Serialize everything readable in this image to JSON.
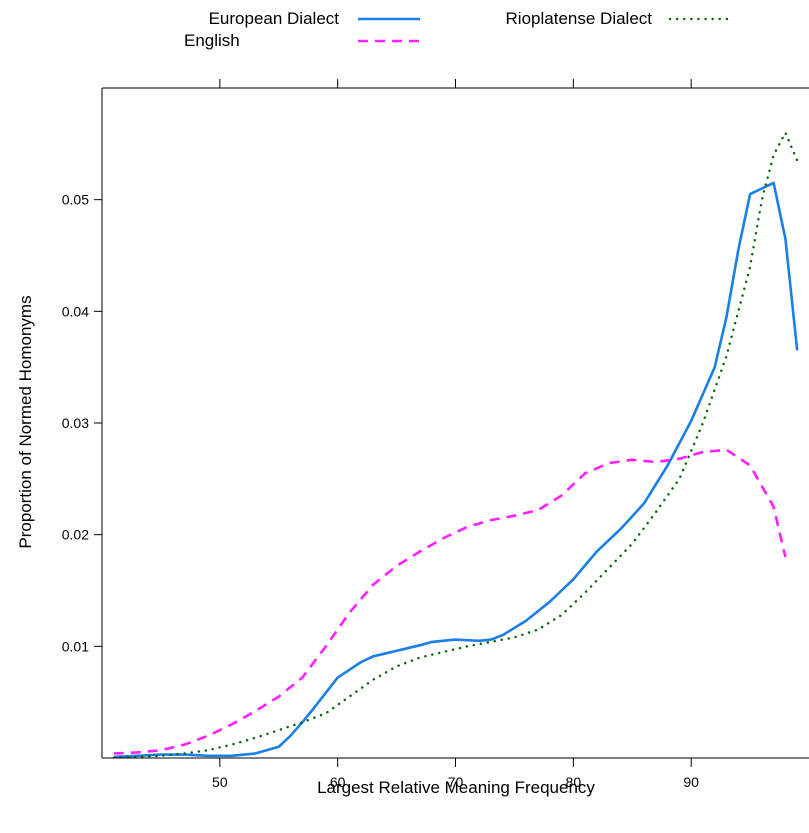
{
  "chart_data": {
    "type": "line",
    "title": "",
    "xlabel": "Largest Relative Meaning Frequency",
    "ylabel": "Proportion of Normed Homonyms",
    "xlim": [
      40,
      100
    ],
    "ylim": [
      0,
      0.06
    ],
    "x_ticks": [
      50,
      60,
      70,
      80,
      90
    ],
    "x_tick_labels": [
      "50",
      "60",
      "70",
      "80",
      "90"
    ],
    "y_ticks": [
      0.01,
      0.02,
      0.03,
      0.04,
      0.05
    ],
    "y_tick_labels": [
      "0.01",
      "0.02",
      "0.03",
      "0.04",
      "0.05"
    ],
    "grid": false,
    "legend_position": "top",
    "series": [
      {
        "name": "European Dialect",
        "color": "#1a7fe8",
        "line_style": "solid",
        "points": [
          [
            41,
            0.0001
          ],
          [
            43,
            0.0002
          ],
          [
            45,
            0.0003
          ],
          [
            47,
            0.0003
          ],
          [
            49,
            0.0002
          ],
          [
            51,
            0.0002
          ],
          [
            53,
            0.0004
          ],
          [
            55,
            0.001
          ],
          [
            56,
            0.002
          ],
          [
            57,
            0.0032
          ],
          [
            58,
            0.0045
          ],
          [
            60,
            0.0072
          ],
          [
            62,
            0.0086
          ],
          [
            63,
            0.0091
          ],
          [
            65,
            0.0096
          ],
          [
            67,
            0.0101
          ],
          [
            68,
            0.0104
          ],
          [
            70,
            0.0106
          ],
          [
            72,
            0.0105
          ],
          [
            73,
            0.0106
          ],
          [
            74,
            0.011
          ],
          [
            76,
            0.0123
          ],
          [
            78,
            0.014
          ],
          [
            80,
            0.016
          ],
          [
            82,
            0.0185
          ],
          [
            84,
            0.0205
          ],
          [
            86,
            0.0228
          ],
          [
            88,
            0.0262
          ],
          [
            90,
            0.0302
          ],
          [
            92,
            0.035
          ],
          [
            93,
            0.0395
          ],
          [
            94,
            0.0455
          ],
          [
            95,
            0.0505
          ],
          [
            96,
            0.051
          ],
          [
            97,
            0.0515
          ],
          [
            98,
            0.0465
          ],
          [
            99,
            0.0365
          ]
        ]
      },
      {
        "name": "English",
        "color": "#ff20ff",
        "line_style": "dashed",
        "points": [
          [
            41,
            0.0004
          ],
          [
            43,
            0.0005
          ],
          [
            45,
            0.0007
          ],
          [
            47,
            0.0012
          ],
          [
            49,
            0.002
          ],
          [
            51,
            0.003
          ],
          [
            53,
            0.0042
          ],
          [
            55,
            0.0055
          ],
          [
            57,
            0.0072
          ],
          [
            59,
            0.01
          ],
          [
            61,
            0.013
          ],
          [
            63,
            0.0155
          ],
          [
            65,
            0.0172
          ],
          [
            67,
            0.0185
          ],
          [
            69,
            0.0197
          ],
          [
            71,
            0.0207
          ],
          [
            73,
            0.0213
          ],
          [
            75,
            0.0217
          ],
          [
            77,
            0.0222
          ],
          [
            79,
            0.0235
          ],
          [
            81,
            0.0255
          ],
          [
            83,
            0.0264
          ],
          [
            85,
            0.0267
          ],
          [
            87,
            0.0265
          ],
          [
            89,
            0.0268
          ],
          [
            91,
            0.0274
          ],
          [
            93,
            0.0276
          ],
          [
            95,
            0.0262
          ],
          [
            97,
            0.0225
          ],
          [
            98,
            0.018
          ]
        ]
      },
      {
        "name": "Rioplatense Dialect",
        "color": "#006400",
        "line_style": "dotted",
        "points": [
          [
            41,
            0.0
          ],
          [
            43,
            0.0001
          ],
          [
            45,
            0.0002
          ],
          [
            47,
            0.0004
          ],
          [
            49,
            0.0007
          ],
          [
            51,
            0.0012
          ],
          [
            53,
            0.0018
          ],
          [
            55,
            0.0025
          ],
          [
            57,
            0.0032
          ],
          [
            59,
            0.004
          ],
          [
            61,
            0.0055
          ],
          [
            63,
            0.007
          ],
          [
            65,
            0.0082
          ],
          [
            67,
            0.009
          ],
          [
            69,
            0.0095
          ],
          [
            71,
            0.01
          ],
          [
            73,
            0.0104
          ],
          [
            75,
            0.0108
          ],
          [
            77,
            0.0115
          ],
          [
            79,
            0.0128
          ],
          [
            81,
            0.0148
          ],
          [
            83,
            0.017
          ],
          [
            85,
            0.0192
          ],
          [
            87,
            0.022
          ],
          [
            89,
            0.025
          ],
          [
            91,
            0.03
          ],
          [
            93,
            0.036
          ],
          [
            95,
            0.044
          ],
          [
            96,
            0.05
          ],
          [
            97,
            0.054
          ],
          [
            98,
            0.056
          ],
          [
            99,
            0.0535
          ]
        ]
      }
    ]
  }
}
